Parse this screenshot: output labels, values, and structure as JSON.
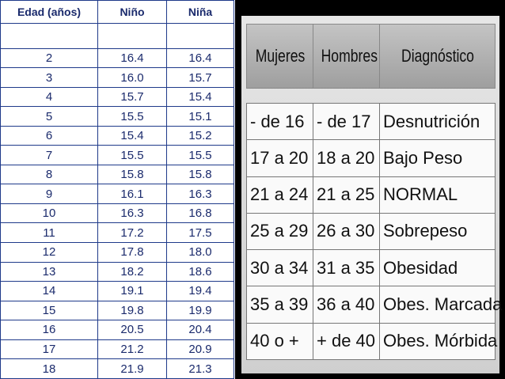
{
  "left_table": {
    "headers": [
      "Edad (años)",
      "Niño",
      "Niña"
    ],
    "rows": [
      [
        "2",
        "16.4",
        "16.4"
      ],
      [
        "3",
        "16.0",
        "15.7"
      ],
      [
        "4",
        "15.7",
        "15.4"
      ],
      [
        "5",
        "15.5",
        "15.1"
      ],
      [
        "6",
        "15.4",
        "15.2"
      ],
      [
        "7",
        "15.5",
        "15.5"
      ],
      [
        "8",
        "15.8",
        "15.8"
      ],
      [
        "9",
        "16.1",
        "16.3"
      ],
      [
        "10",
        "16.3",
        "16.8"
      ],
      [
        "11",
        "17.2",
        "17.5"
      ],
      [
        "12",
        "17.8",
        "18.0"
      ],
      [
        "13",
        "18.2",
        "18.6"
      ],
      [
        "14",
        "19.1",
        "19.4"
      ],
      [
        "15",
        "19.8",
        "19.9"
      ],
      [
        "16",
        "20.5",
        "20.4"
      ],
      [
        "17",
        "21.2",
        "20.9"
      ],
      [
        "18",
        "21.9",
        "21.3"
      ]
    ]
  },
  "right_table": {
    "headers": [
      "Mujeres",
      "Hombres",
      "Diagnóstico"
    ],
    "rows": [
      [
        "- de 16",
        "- de 17",
        "Desnutrición"
      ],
      [
        "17 a 20",
        "18 a 20",
        "Bajo Peso"
      ],
      [
        "21 a 24",
        "21 a 25",
        "NORMAL"
      ],
      [
        "25 a 29",
        "26 a 30",
        "Sobrepeso"
      ],
      [
        "30 a 34",
        "31 a 35",
        "Obesidad"
      ],
      [
        "35 a 39",
        "36 a 40",
        "Obes. Marcada"
      ],
      [
        "40 o +",
        "+ de 40",
        "Obes. Mórbida"
      ]
    ]
  }
}
